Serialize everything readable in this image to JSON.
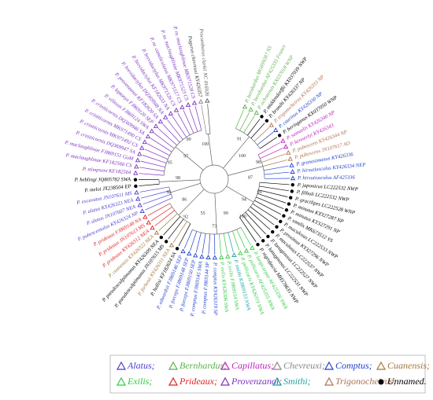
{
  "tree": {
    "leaves": [
      {
        "label": "Procambarus clarkii NC 016926",
        "color": "#555555"
      },
      {
        "label": "Pagurus chevreuxi KY426357",
        "color": "#888888"
      },
      {
        "label": "P. nr. maclaughlinae MK971528 CS",
        "color": "#7b2fbe"
      },
      {
        "label": "P. nr. maclaughlinae MK971523 CS",
        "color": "#7b2fbe"
      },
      {
        "label": "P. nr. canaliculatus MK971517 CS",
        "color": "#7b2fbe"
      },
      {
        "label": "P. brevidactylus MK971526 CS",
        "color": "#7b2fbe"
      },
      {
        "label": "P. brevidactylus KF182633 NA",
        "color": "#7b2fbe"
      },
      {
        "label": "P. brevidactylus DQ369948 NA",
        "color": "#7b2fbe"
      },
      {
        "label": "P. provenzanoi KF182620 SA",
        "color": "#7b2fbe"
      },
      {
        "label": "P. leptonyx FJ869120 SEP",
        "color": "#7b2fbe"
      },
      {
        "label": "P. villosus FJ869124 SWA",
        "color": "#7b2fbe"
      },
      {
        "label": "P. criniticornis DQ369946 SA",
        "color": "#7b2fbe"
      },
      {
        "label": "P. criniticornis MK971490 CS",
        "color": "#7b2fbe"
      },
      {
        "label": "P. criniticornis MK971492 CS",
        "color": "#7b2fbe"
      },
      {
        "label": "P. criniticornis DQ369947 SA",
        "color": "#7b2fbe"
      },
      {
        "label": "P. maclaughlinae FJ869151 GoM",
        "color": "#7b2fbe"
      },
      {
        "label": "P. maclaughlinae KF182566 CS",
        "color": "#7b2fbe"
      },
      {
        "label": "P. stimpsoni KF182564",
        "color": "#7b2fbe"
      },
      {
        "label": "P. heblingi JQ805782 SWA",
        "color": "#000000"
      },
      {
        "label": "P. meloi JX238504 EP",
        "color": "#000000"
      },
      {
        "label": "P. excavatus JN107611 MS",
        "color": "#4a3fcf"
      },
      {
        "label": "P. alatus KY426323 NEA",
        "color": "#4a3fcf"
      },
      {
        "label": "P. alatus JN107607 NEA",
        "color": "#4a3fcf"
      },
      {
        "label": "P. pubescentulus KY426324 NP",
        "color": "#4a3fcf"
      },
      {
        "label": "P. prideaux FJ869148 NA",
        "color": "#e02020"
      },
      {
        "label": "P. prideaux JN107613 MS",
        "color": "#e02020"
      },
      {
        "label": "P. prideaux KY426312 NEA",
        "color": "#e02020"
      },
      {
        "label": "P. cuanensis KY426322 NEA",
        "color": "#a0783c"
      },
      {
        "label": "P. pseudosculptimanus KY426309 NEA",
        "color": "#000000"
      },
      {
        "label": "P. pseudosculptimanus JN107615 MS",
        "color": "#000000"
      },
      {
        "label": "P. forbesii KY426311 NEA",
        "color": "#a0783c"
      },
      {
        "label": "P. hollisi KF182634 SA",
        "color": "#000000"
      },
      {
        "label": "P. edwardsii FJ869146 SEP",
        "color": "#1f3fcf"
      },
      {
        "label": "P. forceps FJ869148 SEP",
        "color": "#1f3fcf"
      },
      {
        "label": "P. forceps FJ869150 SEP",
        "color": "#1f3fcf"
      },
      {
        "label": "P. comptus FJ869145 SWA",
        "color": "#1f3fcf"
      },
      {
        "label": "P. comptus FJ869144 SP",
        "color": "#1f3fcf"
      },
      {
        "label": "P. comptus KY426319 SP",
        "color": "#1f3fcf"
      },
      {
        "label": "P. exilis KY426306 SWA",
        "color": "#2ecc40"
      },
      {
        "label": "P. exilis FJ869154 SWA",
        "color": "#2ecc40"
      },
      {
        "label": "P. smithi KJ869153 NWA",
        "color": "#20a0a0"
      },
      {
        "label": "P. pollicaris KY426319 NWA",
        "color": "#2ecc40"
      },
      {
        "label": "P. pollicaris AF425355 NWA",
        "color": "#2ecc40"
      },
      {
        "label": "P. longicarpus AF425356 NWA",
        "color": "#2ecc40"
      },
      {
        "label": "P. nigrofascia MH578635 NWP",
        "color": "#000000"
      },
      {
        "label": "P. lanuginosus LC222531 NWP",
        "color": "#000000"
      },
      {
        "label": "P. lanuginosus LC222527 NWP",
        "color": "#000000"
      },
      {
        "label": "P. maculosus LC222537 NWP",
        "color": "#000000"
      },
      {
        "label": "P. proximus KY327296 NWP",
        "color": "#000000"
      },
      {
        "label": "P. maculosus LC222533 NWP",
        "color": "#000000"
      },
      {
        "label": "P. similis MK673512 YS",
        "color": "#000000"
      },
      {
        "label": "P. minutus KY327291 NP",
        "color": "#000000"
      },
      {
        "label": "P. minutus KY327287 NP",
        "color": "#000000"
      },
      {
        "label": "P. gracilipes LC222528 WNP",
        "color": "#000000"
      },
      {
        "label": "P. filholi LC222532 NWP",
        "color": "#000000"
      },
      {
        "label": "P. japonicus LC222532 NWP",
        "color": "#000000"
      },
      {
        "label": "P. hirsutiusculus AF425336",
        "color": "#1f3fcf"
      },
      {
        "label": "P. hirsutiusculus KY426334 NEP",
        "color": "#1f3fcf"
      },
      {
        "label": "P. granosimanus KY426336",
        "color": "#1f3fcf"
      },
      {
        "label": "P. pubescens JN107617 AO",
        "color": "#b07050"
      },
      {
        "label": "P. pubescens KY426344 NP",
        "color": "#b07050"
      },
      {
        "label": "P. kennerlyi KY426343",
        "color": "#c020c0"
      },
      {
        "label": "P. samuelis KY426340 NP",
        "color": "#c020c0"
      },
      {
        "label": "P. beringanus KX037050 WNP",
        "color": "#000000"
      },
      {
        "label": "P. caurinus KY426330 NP",
        "color": "#1f3fcf"
      },
      {
        "label": "P. trigonocheirus KY426333 NP",
        "color": "#b07050"
      },
      {
        "label": "P. brandti KY426337 NP",
        "color": "#000000"
      },
      {
        "label": "P. middendorffii KX037039 NWP",
        "color": "#000000"
      },
      {
        "label": "P. ochotensis KX037018 WNP",
        "color": "#5bb04a"
      },
      {
        "label": "P. bernhardus AF425335 France",
        "color": "#5bb04a"
      },
      {
        "label": "P. bernhardus MG699287 NS",
        "color": "#5bb04a"
      }
    ],
    "support_values": [
      "100",
      "99",
      "97",
      "95",
      "98",
      "96",
      "86",
      "92",
      "55",
      "73",
      "99",
      "100",
      "94",
      "99",
      "87",
      "98",
      "100",
      "91"
    ]
  },
  "legend": [
    {
      "label": "Alatus;",
      "color": "#4a3fcf"
    },
    {
      "label": "Bernhardus;",
      "color": "#5bb04a"
    },
    {
      "label": "Capillatus;",
      "color": "#c020c0"
    },
    {
      "label": "Chevreuxi;",
      "color": "#888888"
    },
    {
      "label": "Comptus;",
      "color": "#1f3fcf"
    },
    {
      "label": "Cuanensis;",
      "color": "#a0783c"
    },
    {
      "label": "Exilis;",
      "color": "#2ecc40"
    },
    {
      "label": "Prideaux;",
      "color": "#e02020"
    },
    {
      "label": "Provenzanoi;",
      "color": "#7b2fbe"
    },
    {
      "label": "Smithi;",
      "color": "#20a0a0"
    },
    {
      "label": "Trigonocheirus;",
      "color": "#b07050"
    },
    {
      "label": "Unnamed.",
      "color": "#000000"
    }
  ]
}
